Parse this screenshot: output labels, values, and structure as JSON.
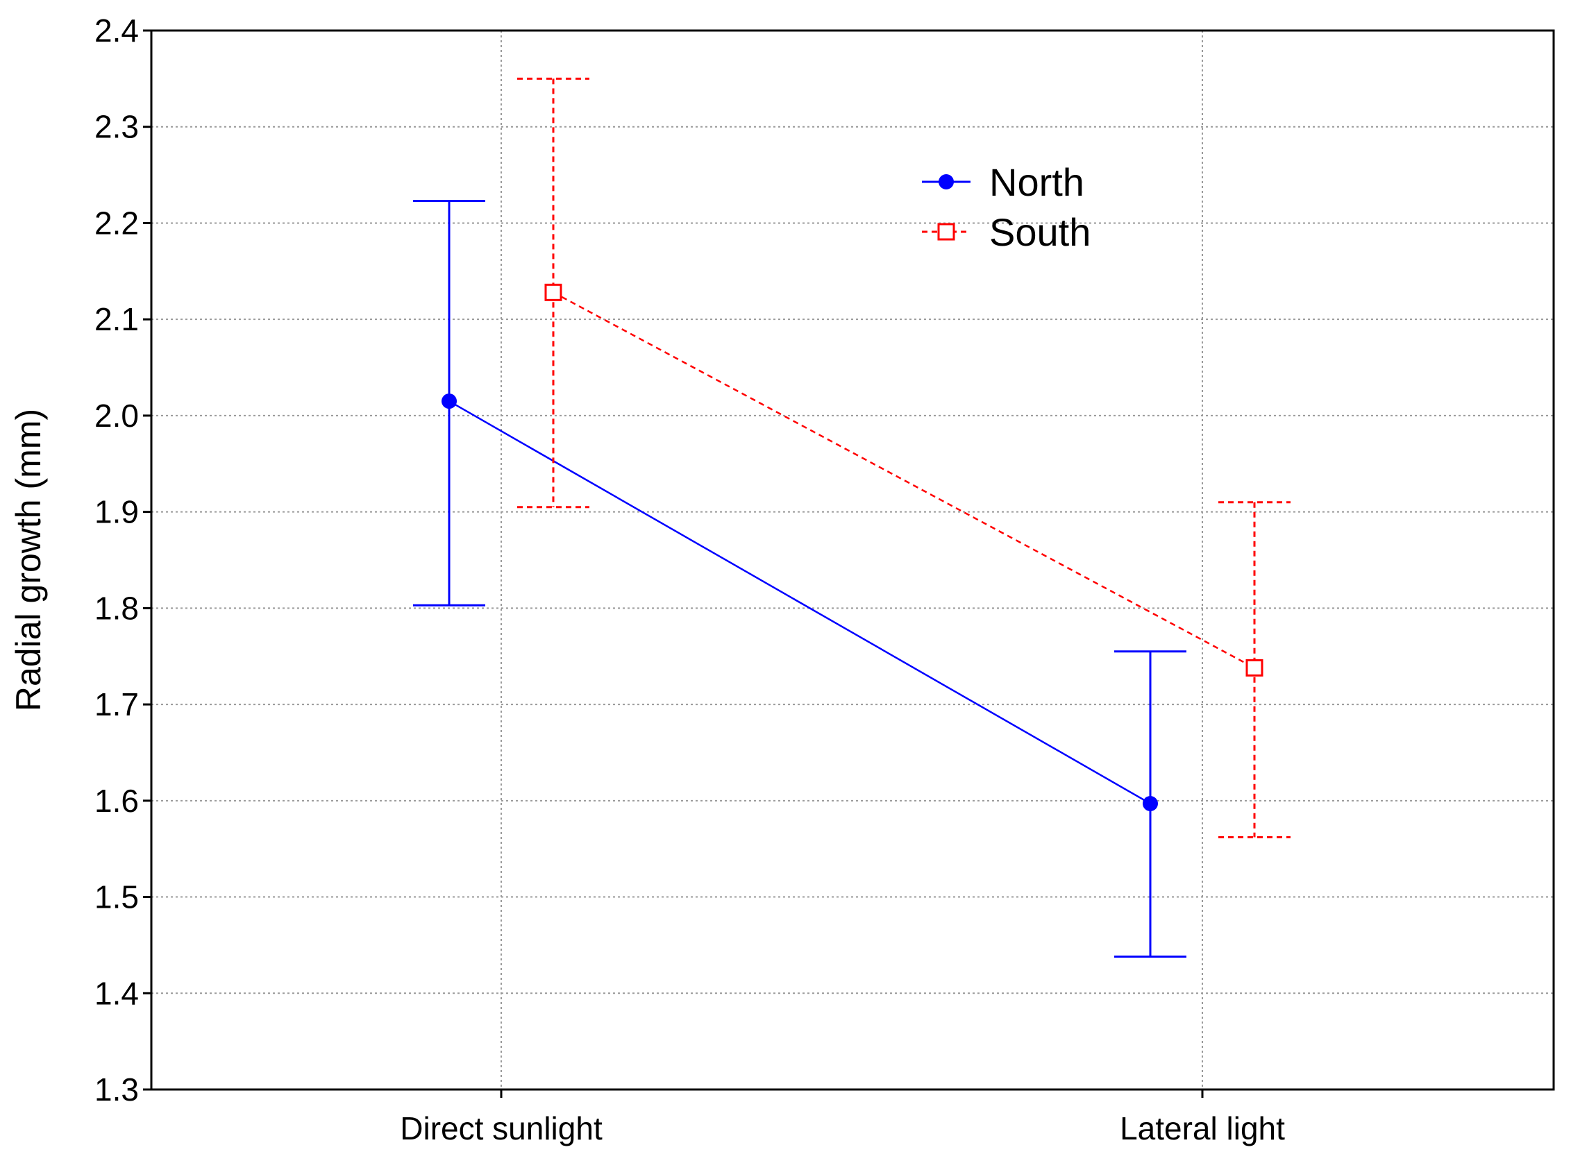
{
  "chart_data": {
    "type": "line",
    "categories": [
      "Direct sunlight",
      "Lateral light"
    ],
    "ylabel": "Radial growth (mm)",
    "xlabel": "",
    "ylim": [
      1.3,
      2.4
    ],
    "yticks": [
      "1.3",
      "1.4",
      "1.5",
      "1.6",
      "1.7",
      "1.8",
      "1.9",
      "2.0",
      "2.1",
      "2.2",
      "2.3",
      "2.4"
    ],
    "grid": true,
    "legend_position": "top-right",
    "series": [
      {
        "name": "North",
        "color": "#0000ff",
        "marker": "filled-circle",
        "line_style": "solid",
        "values": [
          2.015,
          1.597
        ],
        "error_low": [
          1.803,
          1.438
        ],
        "error_high": [
          2.223,
          1.755
        ]
      },
      {
        "name": "South",
        "color": "#ff0000",
        "marker": "open-square",
        "line_style": "dashed",
        "values": [
          2.128,
          1.738
        ],
        "error_low": [
          1.905,
          1.562
        ],
        "error_high": [
          2.35,
          1.91
        ]
      }
    ]
  }
}
